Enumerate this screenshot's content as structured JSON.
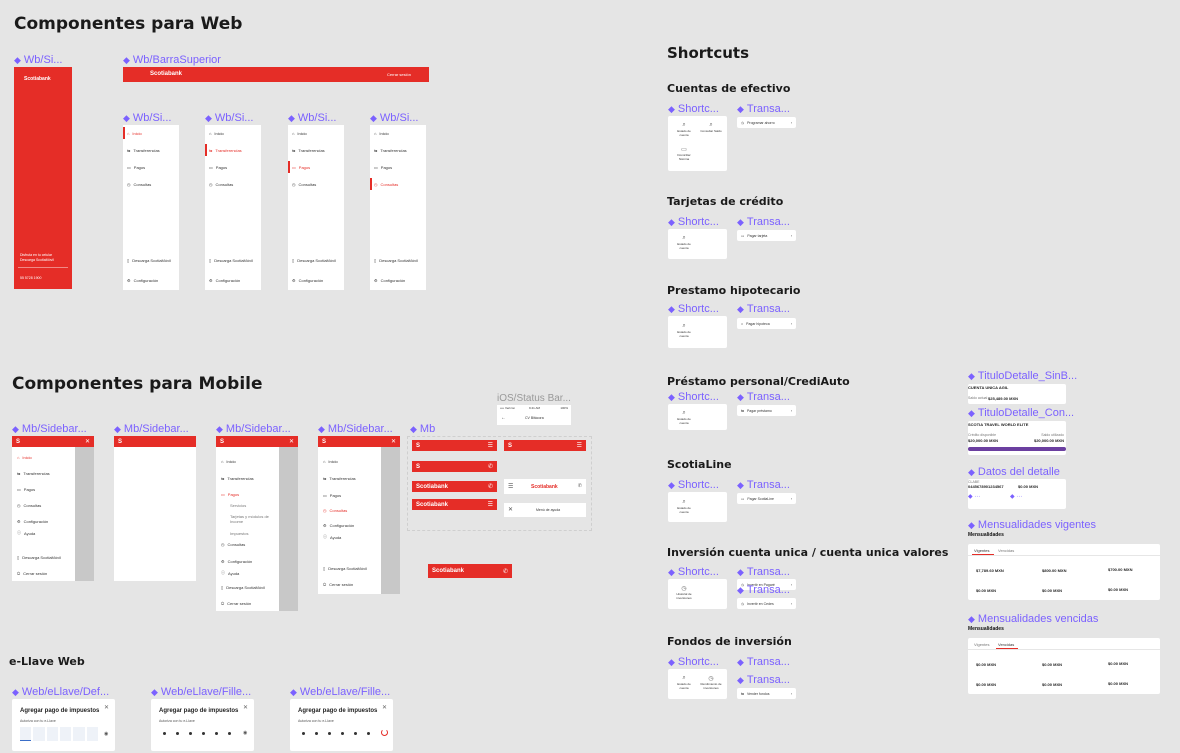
{
  "web": {
    "title": "Componentes para Web",
    "sidebar_label": "Wb/Si...",
    "topbar_label": "Wb/BarraSuperior",
    "brand": "Scotiabank",
    "logout": "Cerrar sesión",
    "menu": [
      "Inicio",
      "Transferencias",
      "Pagos",
      "Consultas"
    ],
    "bottom": {
      "download_hint": "Disfruta en tu celular",
      "download": "Descarga ScotiaMóvil",
      "config": "Configuración",
      "phone": "55 5728 1900"
    }
  },
  "mobile": {
    "title": "Componentes para Mobile",
    "sidebar_label": "Mb/Sidebar...",
    "status_label": "iOS/Status Bar...",
    "status_carrier": "•••• Verizon",
    "status_time": "9:41 AM",
    "status_battery": "100%",
    "status_back": "CV Bitácora",
    "mb_label": "Mb",
    "brand": "Scotiabank",
    "menu_a": [
      "Inicio",
      "Transferencias",
      "Pagos",
      "Consultas",
      "Configuración",
      "Ayuda"
    ],
    "menu_b": [
      "Inicio",
      "Transferencias",
      "Pagos",
      "Servicios",
      "Tarjetas y módulos de Income",
      "Impuestos",
      "Consultas",
      "Configuración",
      "Ayuda",
      "Descarga ScotiaMóvil",
      "Cerrar sesión"
    ],
    "menu_c": [
      "Inicio",
      "Transferencias",
      "Pagos",
      "Consultas",
      "Configuración",
      "Ayuda",
      "Descarga ScotiaMóvil",
      "Cerrar sesión"
    ],
    "download": "Descarga ScotiaMóvil",
    "logout": "Cerrar sesión",
    "help_menu": "Menú de ayuda"
  },
  "ellave": {
    "title": "e-Llave Web",
    "labels": [
      "Web/eLlave/Def...",
      "Web/eLlave/Fille...",
      "Web/eLlave/Fille..."
    ],
    "card_title": "Agregar pago de impuestos",
    "card_sub": [
      "Autoriza con tu e-Llave",
      "Autoriza con tu e-Llave",
      "Autoriza con tu e-Llave"
    ]
  },
  "shortcuts": {
    "title": "Shortcuts",
    "shortc_label": "Shortc...",
    "transa_label": "Transa...",
    "groups": [
      {
        "name": "Cuentas de efectivo",
        "tiles": [
          "Estado de cuenta",
          "Consultar Saldo",
          "Domiciliar Nómina"
        ],
        "action": "Programar ahorro"
      },
      {
        "name": "Tarjetas de crédito",
        "tiles": [
          "Estado de cuenta"
        ],
        "action": "Pagar tarjeta"
      },
      {
        "name": "Prestamo hipotecario",
        "tiles": [
          "Estado de cuenta"
        ],
        "action": "Pagar hipoteca"
      },
      {
        "name": "Préstamo personal/CrediAuto",
        "tiles": [
          "Estado de cuenta"
        ],
        "action": "Pagar préstamo"
      },
      {
        "name": "ScotiaLine",
        "tiles": [
          "Estado de cuenta"
        ],
        "action": "Pagar ScotiaLine"
      },
      {
        "name": "Inversión cuenta unica / cuenta unica valores",
        "tiles": [
          "Historial de inversiones"
        ],
        "action": "Invertir en Pagaré",
        "action2": "Invertir en Cedes"
      },
      {
        "name": "Fondos de inversión",
        "tiles": [
          "Estado de cuenta",
          "Rendimiento de inversiones"
        ],
        "action": "Vender fondos"
      }
    ]
  },
  "details": {
    "titulo_sin": "TituloDetalle_SinB...",
    "titulo_con": "TituloDetalle_Con...",
    "datos": "Datos del detalle",
    "vigentes": "Mensualidades vigentes",
    "vencidas": "Mensualidades vencidas",
    "mensualidades": "Mensualidades",
    "account_sin": "CUENTA UNICA AGIL",
    "saldo_label": "Saldo actual",
    "saldo_value": "$25,489.00 MXN",
    "account_con": "SCOTIA TRAVEL WORLD ELITE",
    "credit_available": "Crédito disponible",
    "credit_used": "Saldo utilizado",
    "credit_available_value": "$20,000.00 MXN",
    "credit_used_value": "$20,000.00 MXN",
    "clabe_label": "CLABE",
    "clabe_value": "0445678901234567",
    "amount_value": "$0.00 MXN",
    "tabs": [
      "Vigentes",
      "Vencidas"
    ],
    "amounts_a": [
      "$7,789.60 MXN",
      "$800.00 MXN",
      "$700.00 MXN",
      "$0.00 MXN",
      "$0.00 MXN",
      "$0.00 MXN"
    ],
    "amounts_b": [
      "$0.00 MXN",
      "$0.00 MXN",
      "$0.00 MXN",
      "$0.00 MXN",
      "$0.00 MXN",
      "$0.00 MXN"
    ]
  }
}
